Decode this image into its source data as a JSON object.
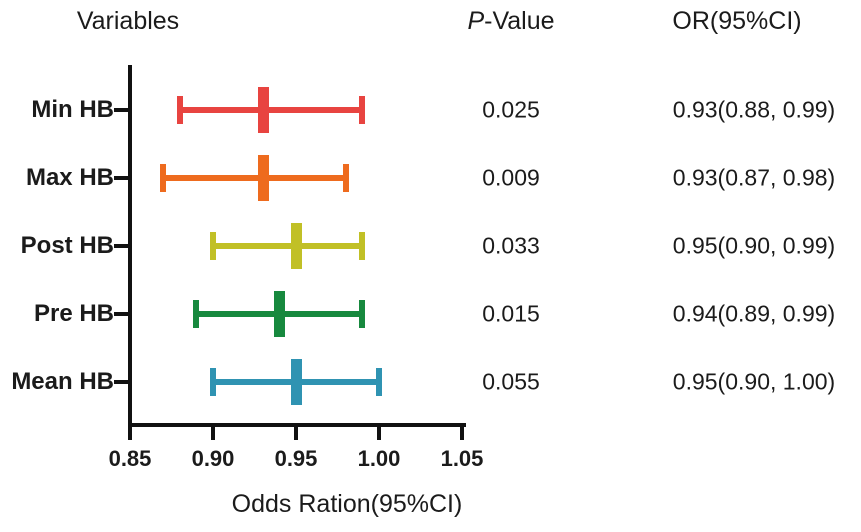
{
  "header": {
    "variables": "Variables",
    "p_value_italic": "P",
    "p_value_rest": "-Value",
    "or_ci": "OR(95%CI)"
  },
  "chart_data": {
    "type": "forest_plot",
    "xlabel": "Odds Ration(95%CI)",
    "xlim": [
      0.85,
      1.05
    ],
    "xticks": [
      "0.85",
      "0.90",
      "0.95",
      "1.00",
      "1.05"
    ],
    "grid": false,
    "rows": [
      {
        "label": "Min HB",
        "or": 0.93,
        "ci_low": 0.88,
        "ci_high": 0.99,
        "p_value": "0.025",
        "or_text": "0.93(0.88, 0.99)",
        "color": "#e84440"
      },
      {
        "label": "Max HB",
        "or": 0.93,
        "ci_low": 0.87,
        "ci_high": 0.98,
        "p_value": "0.009",
        "or_text": "0.93(0.87, 0.98)",
        "color": "#ee6b1e"
      },
      {
        "label": "Post HB",
        "or": 0.95,
        "ci_low": 0.9,
        "ci_high": 0.99,
        "p_value": "0.033",
        "or_text": "0.95(0.90, 0.99)",
        "color": "#c1c026"
      },
      {
        "label": "Pre HB",
        "or": 0.94,
        "ci_low": 0.89,
        "ci_high": 0.99,
        "p_value": "0.015",
        "or_text": "0.94(0.89, 0.99)",
        "color": "#17893e"
      },
      {
        "label": "Mean HB",
        "or": 0.95,
        "ci_low": 0.9,
        "ci_high": 1.0,
        "p_value": "0.055",
        "or_text": "0.95(0.90, 1.00)",
        "color": "#2f93b2"
      }
    ],
    "colors": {
      "axis": "#111111",
      "text": "#1b1b1b"
    }
  }
}
